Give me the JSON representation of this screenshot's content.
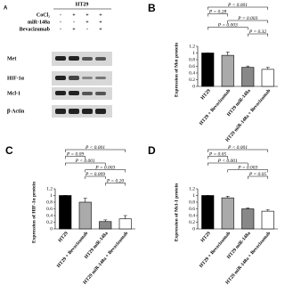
{
  "blot": {
    "panel": "A",
    "header": "HT29",
    "conditions": [
      {
        "label": "CoCl₂",
        "signs": [
          "-",
          "+",
          "+",
          "+"
        ]
      },
      {
        "label": "miR-148a",
        "signs": [
          "-",
          "-",
          "+",
          "+"
        ]
      },
      {
        "label": "Bevacizumab",
        "signs": [
          "-",
          "+",
          "-",
          "+"
        ]
      }
    ],
    "proteins": [
      "Met",
      "HIF-1α",
      "Mcl-1",
      "β-Actin"
    ]
  },
  "chart_data": [
    {
      "type": "bar",
      "panel": "B",
      "y_label": "Expression of Met protein",
      "categories": [
        "HT29",
        "HT29 + Bevacizumab",
        "HT29 miR-148a",
        "HT29 miR-148a + Bevacizumab"
      ],
      "values": [
        1,
        0.93,
        0.57,
        0.51
      ],
      "errors": [
        0,
        0.1,
        0.04,
        0.06
      ],
      "colors": [
        "#000000",
        "#aaaaaa",
        "#888888",
        "#ffffff"
      ],
      "ylim": [
        0,
        1.2
      ],
      "yticks": [
        0,
        0.2,
        0.4,
        0.6,
        0.8,
        1,
        1.2
      ],
      "annotations": [
        "P < 0.001",
        "P = 0.28",
        "P = 0.003",
        "P = 0.003",
        "P = 0.32"
      ]
    },
    {
      "type": "bar",
      "panel": "C",
      "y_label": "Expression of HIF-1α protein",
      "categories": [
        "HT29",
        "HT29 + Bevacizumab",
        "HT29 miR-148a",
        "HT29 miR-148a + Bevacizumab"
      ],
      "values": [
        1,
        0.8,
        0.22,
        0.3
      ],
      "errors": [
        0,
        0.12,
        0.05,
        0.1
      ],
      "colors": [
        "#000000",
        "#aaaaaa",
        "#888888",
        "#ffffff"
      ],
      "ylim": [
        0,
        1.2
      ],
      "yticks": [
        0,
        0.2,
        0.4,
        0.6,
        0.8,
        1,
        1.2
      ],
      "annotations": [
        "P < 0.001",
        "P = 0.09",
        "P < 0.001",
        "P = 0.003",
        "P = 0.009",
        "P = 0.20"
      ]
    },
    {
      "type": "bar",
      "panel": "D",
      "y_label": "Expression of Mcl-1 protein",
      "categories": [
        "HT29",
        "HT29 + Bevacizumab",
        "HT29 miR-148a",
        "HT29 miR-148a + Bevacizumab"
      ],
      "values": [
        1,
        0.93,
        0.6,
        0.53
      ],
      "errors": [
        0,
        0.05,
        0.03,
        0.04
      ],
      "colors": [
        "#000000",
        "#aaaaaa",
        "#888888",
        "#ffffff"
      ],
      "ylim": [
        0,
        1.2
      ],
      "yticks": [
        0,
        0.2,
        0.4,
        0.6,
        0.8,
        1,
        1.2
      ],
      "annotations": [
        "P < 0.001",
        "P = 0.05",
        "P < 0.001",
        "P = 0.003",
        "P = 0.05"
      ]
    }
  ]
}
